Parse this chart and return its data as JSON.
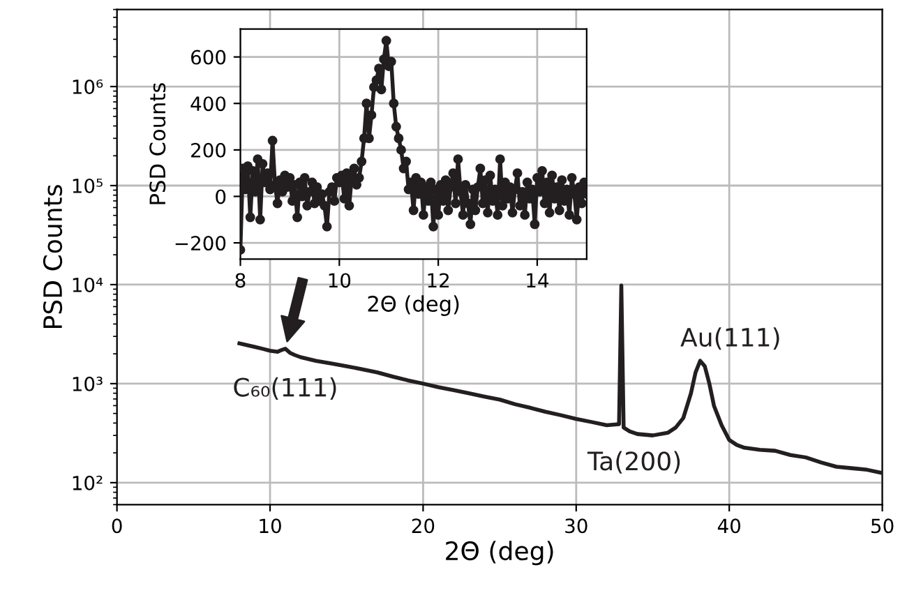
{
  "chart_data": [
    {
      "type": "line",
      "xlabel": "2Θ (deg)",
      "ylabel": "PSD Counts",
      "log": "y",
      "grid": true,
      "marker": "none",
      "line_style": "solid",
      "xlim": [
        0,
        50
      ],
      "xticks": [
        0,
        10,
        20,
        30,
        40,
        50
      ],
      "ylim": [
        60,
        6000000
      ],
      "yticks": [
        {
          "value": 100,
          "label": "10²"
        },
        {
          "value": 1000,
          "label": "10³"
        },
        {
          "value": 10000,
          "label": "10⁴"
        },
        {
          "value": 100000,
          "label": "10⁵"
        },
        {
          "value": 1000000,
          "label": "10⁶"
        }
      ],
      "series": [
        {
          "color": "#231f20",
          "x": [
            8,
            8.5,
            9,
            9.5,
            10,
            10.5,
            10.8,
            11,
            11.3,
            11.6,
            12,
            13,
            14,
            15,
            16,
            17,
            18,
            19,
            20,
            21,
            22,
            23,
            24,
            25,
            26,
            27,
            28,
            29,
            30,
            31,
            32,
            32.8,
            32.95,
            33.1,
            33.5,
            34,
            35,
            36,
            36.5,
            37,
            37.5,
            37.8,
            38.1,
            38.4,
            38.7,
            39,
            39.5,
            40,
            40.5,
            41,
            42,
            43,
            44,
            45,
            46,
            47,
            48,
            49,
            50
          ],
          "values": [
            2550,
            2450,
            2350,
            2250,
            2150,
            2100,
            2200,
            2250,
            2050,
            1950,
            1850,
            1700,
            1600,
            1500,
            1400,
            1300,
            1180,
            1080,
            1000,
            920,
            860,
            800,
            740,
            690,
            620,
            570,
            520,
            480,
            440,
            410,
            380,
            390,
            9800,
            360,
            330,
            310,
            300,
            320,
            360,
            450,
            800,
            1300,
            1700,
            1500,
            1000,
            600,
            380,
            270,
            240,
            225,
            215,
            210,
            190,
            180,
            160,
            145,
            140,
            135,
            125
          ]
        }
      ],
      "annotations": [
        {
          "text": "C₆₀(111)",
          "x": 11,
          "y": 2250
        },
        {
          "text": "Au(111)",
          "x": 38.2,
          "y": 1700
        },
        {
          "text": "Ta(200)",
          "x": 33,
          "y": 370
        }
      ]
    },
    {
      "type": "line",
      "xlabel": "2Θ (deg)",
      "ylabel": "PSD Counts",
      "grid": true,
      "marker": "circle",
      "line_style": "solid",
      "xlim": [
        8,
        15
      ],
      "xticks": [
        8,
        10,
        12,
        14
      ],
      "ylim": [
        -270,
        720
      ],
      "yticks": [
        {
          "value": -200,
          "label": "−200"
        },
        0,
        200,
        400,
        600
      ],
      "series": [
        {
          "color": "#231f20",
          "x": [
            8.0,
            8.05,
            8.1,
            8.15,
            8.2,
            8.25,
            8.3,
            8.35,
            8.4,
            8.45,
            8.5,
            8.55,
            8.6,
            8.65,
            8.7,
            8.75,
            8.8,
            8.85,
            8.9,
            8.95,
            9.0,
            9.05,
            9.1,
            9.15,
            9.2,
            9.25,
            9.3,
            9.35,
            9.4,
            9.45,
            9.5,
            9.55,
            9.6,
            9.65,
            9.7,
            9.75,
            9.8,
            9.85,
            9.9,
            9.95,
            10.0,
            10.05,
            10.1,
            10.15,
            10.2,
            10.25,
            10.3,
            10.35,
            10.4,
            10.45,
            10.5,
            10.55,
            10.6,
            10.65,
            10.7,
            10.75,
            10.8,
            10.85,
            10.9,
            10.95,
            11.0,
            11.05,
            11.1,
            11.15,
            11.2,
            11.25,
            11.3,
            11.35,
            11.4,
            11.45,
            11.5,
            11.55,
            11.6,
            11.65,
            11.7,
            11.75,
            11.8,
            11.85,
            11.9,
            11.95,
            12.0,
            12.05,
            12.1,
            12.15,
            12.2,
            12.25,
            12.3,
            12.35,
            12.4,
            12.45,
            12.5,
            12.55,
            12.6,
            12.65,
            12.7,
            12.75,
            12.8,
            12.85,
            12.9,
            12.95,
            13.0,
            13.05,
            13.1,
            13.15,
            13.2,
            13.25,
            13.3,
            13.35,
            13.4,
            13.45,
            13.5,
            13.55,
            13.6,
            13.65,
            13.7,
            13.75,
            13.8,
            13.85,
            13.9,
            13.95,
            14.0,
            14.05,
            14.1,
            14.15,
            14.2,
            14.25,
            14.3,
            14.35,
            14.4,
            14.45,
            14.5,
            14.55,
            14.6,
            14.65,
            14.7,
            14.75,
            14.8,
            14.85,
            14.9,
            14.95,
            15.0
          ],
          "values": [
            -230,
            120,
            30,
            130,
            -90,
            110,
            20,
            160,
            -100,
            140,
            60,
            100,
            30,
            240,
            50,
            -30,
            70,
            20,
            90,
            40,
            80,
            -20,
            50,
            -90,
            60,
            0,
            80,
            -40,
            20,
            60,
            -30,
            40,
            -20,
            10,
            -40,
            -130,
            20,
            40,
            -20,
            80,
            60,
            90,
            -10,
            100,
            -40,
            80,
            120,
            50,
            80,
            150,
            250,
            400,
            250,
            350,
            470,
            500,
            550,
            460,
            590,
            670,
            560,
            580,
            400,
            300,
            250,
            200,
            120,
            150,
            30,
            60,
            -60,
            80,
            10,
            60,
            -80,
            40,
            -20,
            60,
            -130,
            30,
            -80,
            50,
            -20,
            70,
            -60,
            40,
            100,
            -30,
            160,
            20,
            -80,
            50,
            -30,
            -120,
            30,
            -60,
            40,
            120,
            -30,
            70,
            -70,
            90,
            -20,
            30,
            -80,
            160,
            -40,
            60,
            -10,
            40,
            -70,
            30,
            100,
            -40,
            20,
            -80,
            60,
            -10,
            30,
            -120,
            80,
            20,
            110,
            -30,
            60,
            -70,
            90,
            -10,
            40,
            -60,
            70,
            -20,
            30,
            -80,
            80,
            10,
            -100,
            40,
            -30,
            60,
            10
          ]
        }
      ]
    }
  ]
}
